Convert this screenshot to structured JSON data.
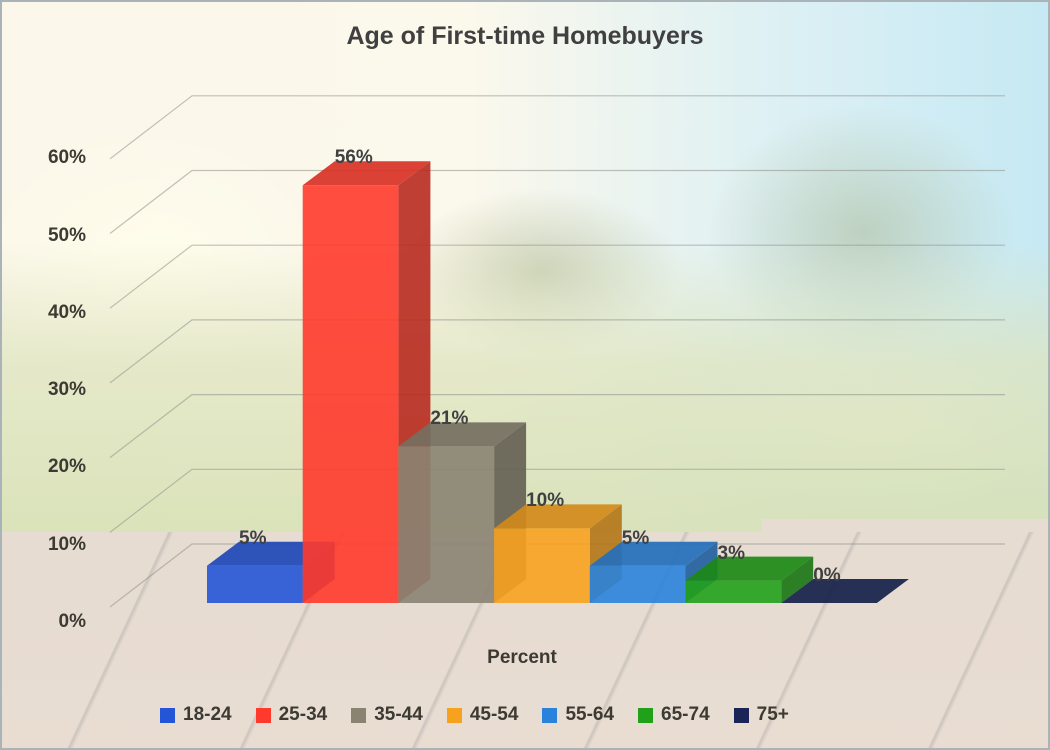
{
  "chart_data": {
    "type": "bar",
    "title": "Age of First-time Homebuyers",
    "xlabel": "Percent",
    "ylabel": "",
    "categories": [
      "18-24",
      "25-34",
      "35-44",
      "45-54",
      "55-64",
      "65-74",
      "75+"
    ],
    "series": [
      {
        "name": "Percent",
        "values": [
          5,
          56,
          21,
          10,
          5,
          3,
          0
        ]
      }
    ],
    "data_labels": [
      "5%",
      "56%",
      "21%",
      "10%",
      "5%",
      "3%",
      "0%"
    ],
    "colors": [
      "#2455d6",
      "#ff3a2c",
      "#8a8372",
      "#f7a21e",
      "#2a82dc",
      "#21a11a",
      "#1a2456"
    ],
    "yticks": [
      "0%",
      "10%",
      "20%",
      "30%",
      "40%",
      "50%",
      "60%"
    ],
    "ylim": [
      0,
      60
    ],
    "grid": true,
    "legend_position": "bottom",
    "style": "3d-column"
  }
}
